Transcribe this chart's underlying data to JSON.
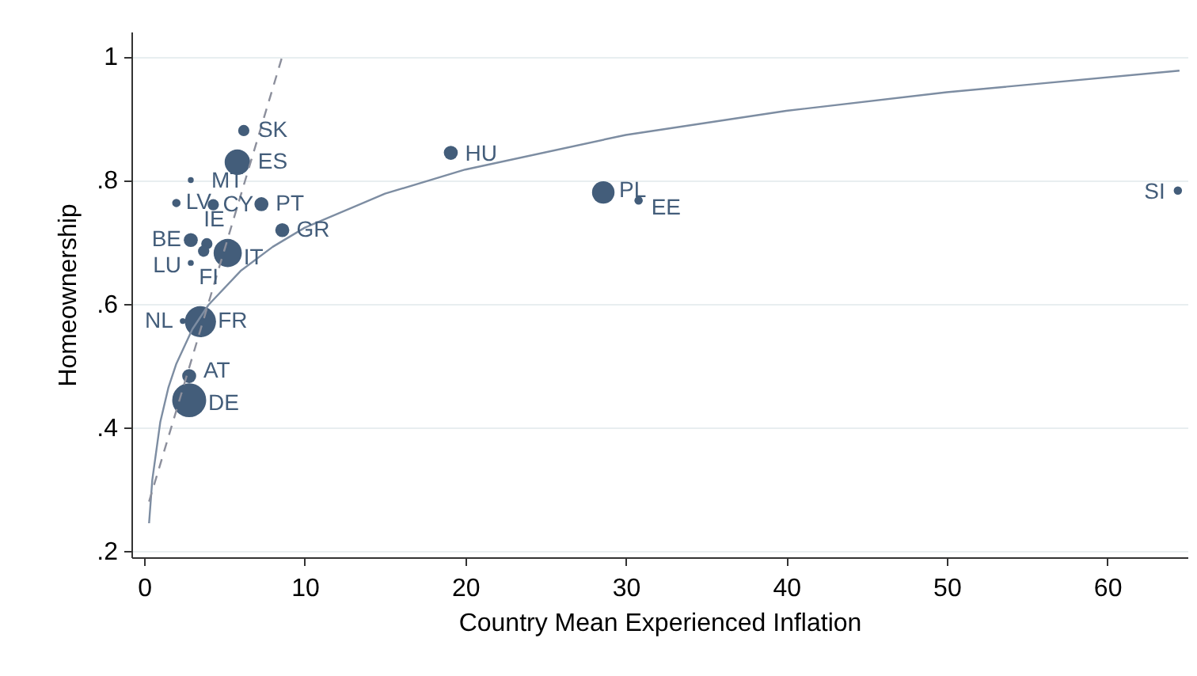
{
  "chart_data": {
    "type": "scatter",
    "xlabel": "Country Mean Experienced Inflation",
    "ylabel": "Homeownership",
    "xlim": [
      -0.8,
      65
    ],
    "ylim": [
      0.19,
      1.04
    ],
    "xticks": [
      0,
      10,
      20,
      30,
      40,
      50,
      60
    ],
    "yticks": [
      {
        "value": 0.2,
        "label": ".2"
      },
      {
        "value": 0.4,
        "label": ".4"
      },
      {
        "value": 0.6,
        "label": ".6"
      },
      {
        "value": 0.8,
        "label": ".8"
      },
      {
        "value": 1,
        "label": "1"
      }
    ],
    "grid": "y",
    "series": [
      {
        "type": "scatter",
        "marker": "circle",
        "color": "#435d7a",
        "x": [
          6.2,
          5.8,
          2.9,
          2.0,
          4.3,
          3.9,
          7.3,
          2.9,
          2.9,
          3.7,
          5.2,
          8.6,
          2.4,
          3.5,
          2.8,
          2.8,
          19.1,
          28.6,
          30.8,
          64.4
        ],
        "values": [
          0.88,
          0.829,
          0.8,
          0.763,
          0.76,
          0.697,
          0.761,
          0.703,
          0.666,
          0.685,
          0.682,
          0.719,
          0.572,
          0.571,
          0.483,
          0.444,
          0.844,
          0.78,
          0.767,
          0.783
        ],
        "sizes": [
          0.11,
          0.56,
          0.03,
          0.06,
          0.11,
          0.11,
          0.17,
          0.17,
          0.03,
          0.11,
          0.69,
          0.17,
          0.03,
          0.84,
          0.17,
          1,
          0.17,
          0.44,
          0.06,
          0.06
        ]
      },
      {
        "type": "line",
        "color": "#7d8da2",
        "line_style": "solid",
        "x": [
          0.3,
          0.5,
          1,
          1.5,
          2,
          3,
          4,
          6,
          8,
          10,
          15,
          20,
          30,
          40,
          50,
          64.5
        ],
        "values": [
          0.245,
          0.315,
          0.409,
          0.464,
          0.503,
          0.559,
          0.598,
          0.653,
          0.692,
          0.723,
          0.778,
          0.817,
          0.873,
          0.912,
          0.942,
          0.977
        ]
      },
      {
        "type": "line",
        "color": "#8c8f9c",
        "line_style": "dashed",
        "x": [
          0.3,
          8.6
        ],
        "values": [
          0.28,
          1.0
        ]
      }
    ],
    "annotations": [
      {
        "text": "SK",
        "x": 6.2,
        "y": 0.88
      },
      {
        "text": "ES",
        "x": 5.8,
        "y": 0.829
      },
      {
        "text": "MT",
        "x": 2.9,
        "y": 0.8
      },
      {
        "text": "LV",
        "x": 2.0,
        "y": 0.763
      },
      {
        "text": "CY",
        "x": 4.3,
        "y": 0.76
      },
      {
        "text": "IE",
        "x": 3.9,
        "y": 0.697
      },
      {
        "text": "PT",
        "x": 7.3,
        "y": 0.761
      },
      {
        "text": "BE",
        "x": 2.9,
        "y": 0.703
      },
      {
        "text": "LU",
        "x": 2.9,
        "y": 0.666
      },
      {
        "text": "FI",
        "x": 3.7,
        "y": 0.685
      },
      {
        "text": "IT",
        "x": 5.2,
        "y": 0.682
      },
      {
        "text": "GR",
        "x": 8.6,
        "y": 0.719
      },
      {
        "text": "NL",
        "x": 2.4,
        "y": 0.572
      },
      {
        "text": "FR",
        "x": 3.5,
        "y": 0.571
      },
      {
        "text": "AT",
        "x": 2.8,
        "y": 0.483
      },
      {
        "text": "DE",
        "x": 2.8,
        "y": 0.444
      },
      {
        "text": "HU",
        "x": 19.1,
        "y": 0.844
      },
      {
        "text": "PL",
        "x": 28.6,
        "y": 0.78
      },
      {
        "text": "EE",
        "x": 30.8,
        "y": 0.767
      },
      {
        "text": "SI",
        "x": 64.4,
        "y": 0.783
      }
    ]
  }
}
